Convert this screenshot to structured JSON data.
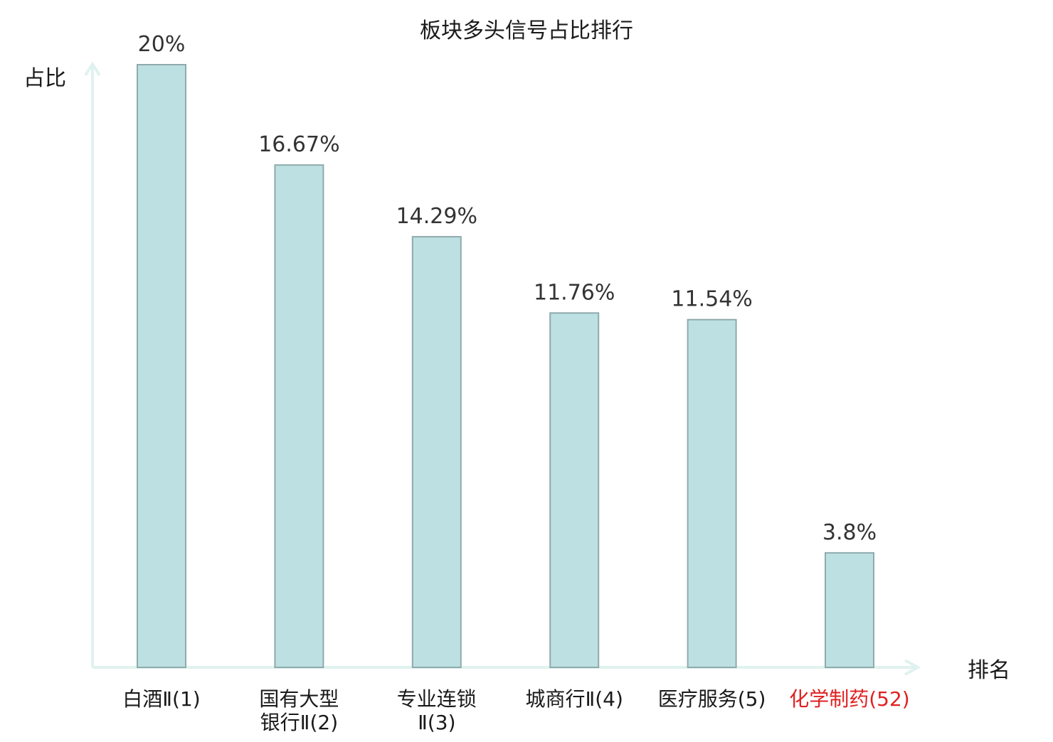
{
  "chart_data": {
    "type": "bar",
    "title": "板块多头信号占比排行",
    "ylabel": "占比",
    "xlabel": "排名",
    "ylim": [
      0,
      20
    ],
    "grid": false,
    "legend": "none",
    "categories": [
      {
        "name": [
          "白酒Ⅱ(1)"
        ],
        "highlight": false
      },
      {
        "name": [
          "国有大型",
          "银行Ⅱ(2)"
        ],
        "highlight": false
      },
      {
        "name": [
          "专业连锁",
          "Ⅱ(3)"
        ],
        "highlight": false
      },
      {
        "name": [
          "城商行Ⅱ(4)"
        ],
        "highlight": false
      },
      {
        "name": [
          "医疗服务(5)"
        ],
        "highlight": false
      },
      {
        "name": [
          "化学制药(52)"
        ],
        "highlight": true
      }
    ],
    "values": [
      20,
      16.67,
      14.29,
      11.76,
      11.54,
      3.8
    ],
    "value_labels": [
      "20%",
      "16.67%",
      "14.29%",
      "11.76%",
      "11.54%",
      "3.8%"
    ],
    "colors": {
      "bar_fill": "#bde0e2",
      "bar_stroke": "#8faaac",
      "axis": "#e0f2ef",
      "label_text": "#1a1a1a",
      "highlight_text": "#e02020"
    }
  }
}
